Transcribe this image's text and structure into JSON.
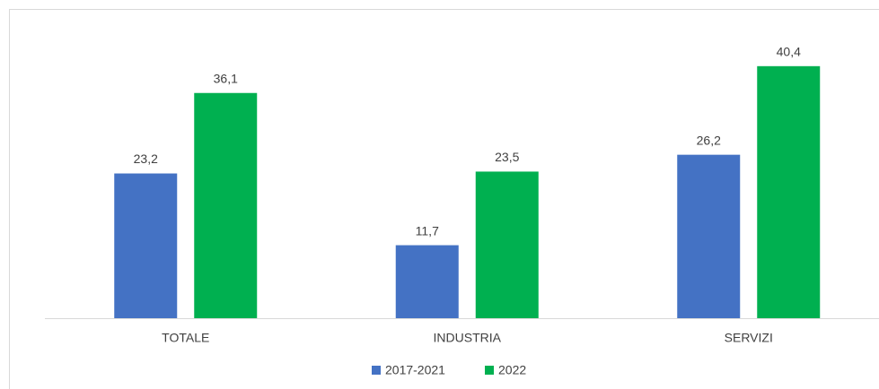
{
  "chart_data": {
    "type": "bar",
    "categories": [
      "TOTALE",
      "INDUSTRIA",
      "SERVIZI"
    ],
    "series": [
      {
        "name": "2017-2021",
        "color": "#4472c4",
        "values": [
          23.2,
          11.7,
          26.2
        ],
        "value_labels": [
          "23,2",
          "11,7",
          "26,2"
        ]
      },
      {
        "name": "2022",
        "color": "#00b050",
        "values": [
          36.1,
          23.5,
          40.4
        ],
        "value_labels": [
          "36,1",
          "23,5",
          "40,4"
        ]
      }
    ],
    "ylim": [
      0,
      50
    ]
  }
}
